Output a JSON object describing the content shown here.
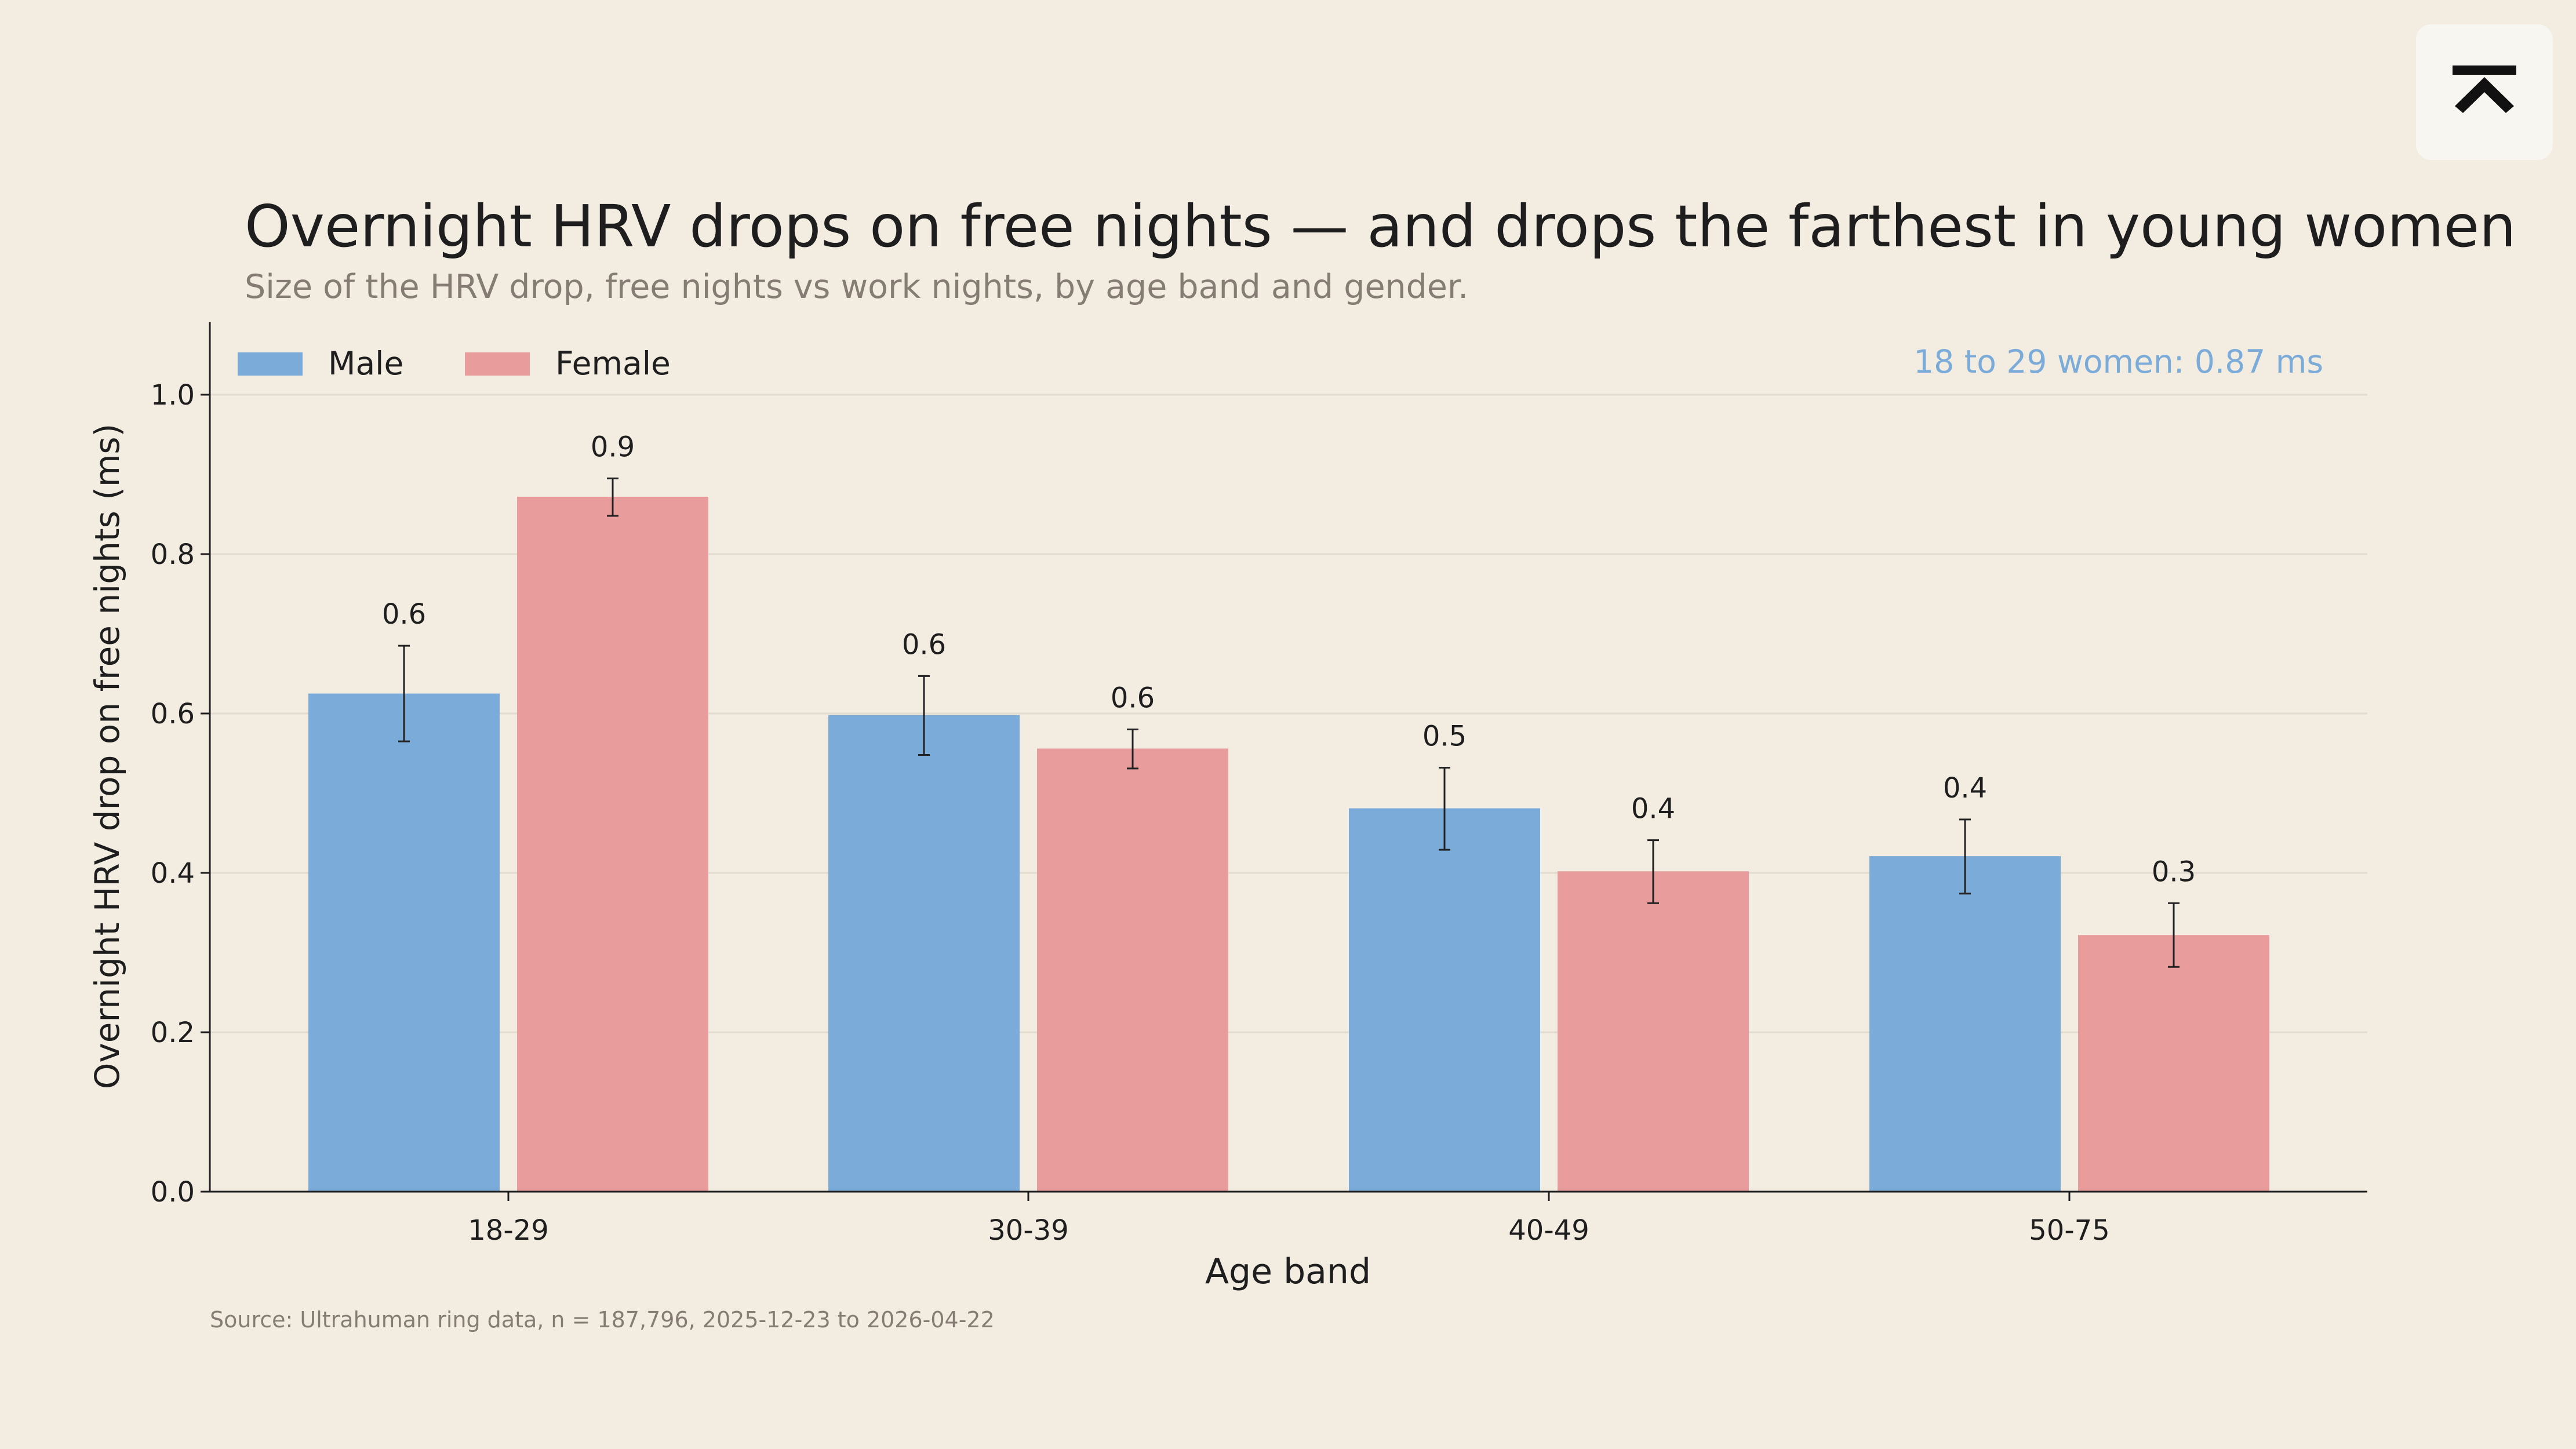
{
  "chart_data": {
    "type": "bar",
    "title": "Overnight HRV drops on free nights — and drops the farthest in young women",
    "subtitle": "Size of the HRV drop, free nights vs work nights, by age band and gender.",
    "xlabel": "Age band",
    "ylabel": "Overnight HRV drop on free nights (ms)",
    "categories": [
      "18-29",
      "30-39",
      "40-49",
      "50-75"
    ],
    "series": [
      {
        "name": "Male",
        "color": "#7aabd9",
        "values": [
          0.625,
          0.598,
          0.481,
          0.421
        ],
        "labels": [
          "0.6",
          "0.6",
          "0.5",
          "0.4"
        ],
        "err_low": [
          0.565,
          0.548,
          0.429,
          0.374
        ],
        "err_high": [
          0.685,
          0.647,
          0.532,
          0.467
        ]
      },
      {
        "name": "Female",
        "color": "#e89c9c",
        "values": [
          0.872,
          0.556,
          0.402,
          0.322
        ],
        "labels": [
          "0.9",
          "0.6",
          "0.4",
          "0.3"
        ],
        "err_low": [
          0.848,
          0.531,
          0.362,
          0.282
        ],
        "err_high": [
          0.895,
          0.58,
          0.441,
          0.362
        ]
      }
    ],
    "ylim": [
      0,
      1.1
    ],
    "yticks": [
      "0.0",
      "0.2",
      "0.4",
      "0.6",
      "0.8",
      "1.0"
    ],
    "grid": true,
    "legend_position": "top-left",
    "annotation": "18 to 29 women: 0.87 ms",
    "annotation_color": "#7aabd9",
    "source": "Source: Ultrahuman ring data, n = 187,796, 2025-12-23 to 2026-04-22"
  },
  "logo": {
    "icon": "ultrahuman-logo-icon"
  }
}
